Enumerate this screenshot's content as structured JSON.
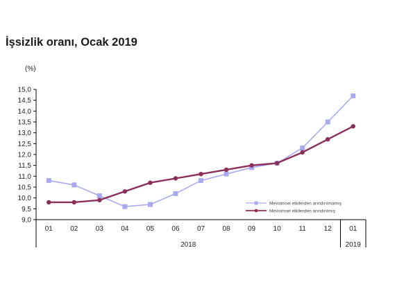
{
  "chart_data": {
    "type": "line",
    "title": "İşsizlik oranı, Ocak 2019",
    "ylabel": "(%)",
    "ylim": [
      9.0,
      15.0
    ],
    "yticks": [
      "9,0",
      "9,5",
      "10,0",
      "10,5",
      "11,0",
      "11,5",
      "12,0",
      "12,5",
      "13,0",
      "13,5",
      "14,0",
      "14,5",
      "15,0"
    ],
    "categories": [
      "01",
      "02",
      "03",
      "04",
      "05",
      "06",
      "07",
      "08",
      "09",
      "10",
      "11",
      "12",
      "01"
    ],
    "year_groups": [
      {
        "label": "2018",
        "from": 0,
        "to": 11
      },
      {
        "label": "2019",
        "from": 12,
        "to": 12
      }
    ],
    "series": [
      {
        "name": "Mevsimsel etkilerden arındırılmamış",
        "color": "#a9a9f0",
        "marker": "square",
        "values": [
          10.8,
          10.6,
          10.1,
          9.6,
          9.7,
          10.2,
          10.8,
          11.1,
          11.4,
          11.6,
          12.3,
          13.5,
          14.7
        ]
      },
      {
        "name": "Mevsimsel etkilerden arındırılmış",
        "color": "#8b2e5a",
        "marker": "circle",
        "values": [
          9.8,
          9.8,
          9.9,
          10.3,
          10.7,
          10.9,
          11.1,
          11.3,
          11.5,
          11.6,
          12.1,
          12.7,
          13.3
        ]
      }
    ],
    "legend_position": "bottom-right",
    "grid": false
  }
}
